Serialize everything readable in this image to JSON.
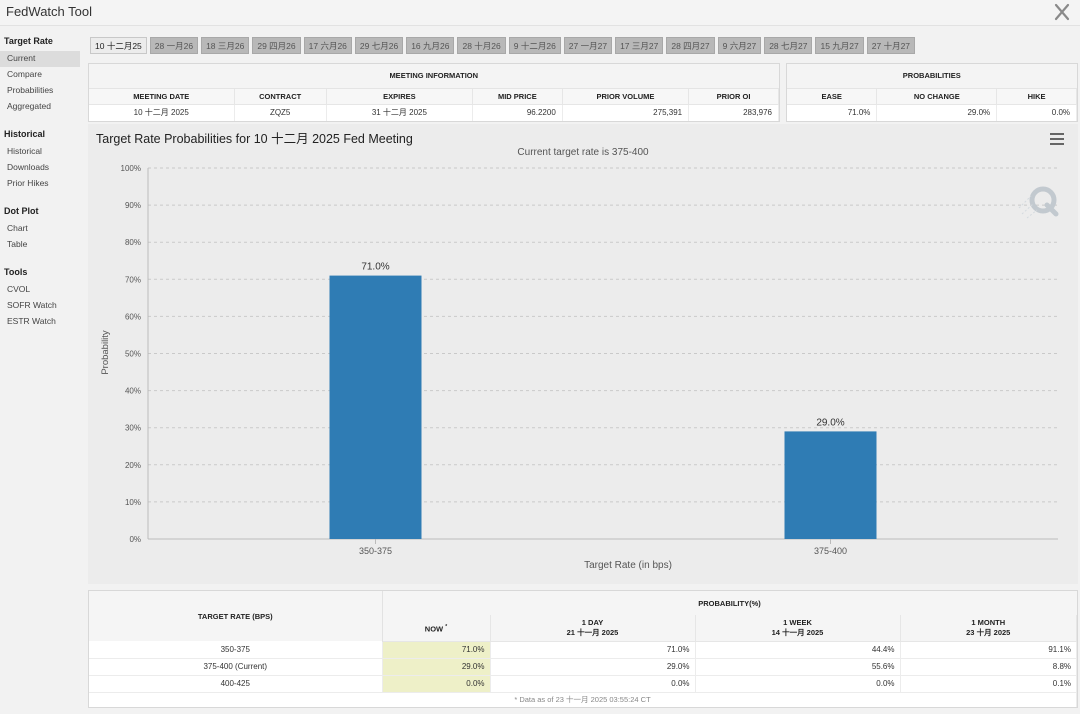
{
  "app": {
    "title": "FedWatch Tool"
  },
  "sidebar": {
    "sections": [
      {
        "heading": "Target Rate",
        "items": [
          "Current",
          "Compare",
          "Probabilities",
          "Aggregated"
        ]
      },
      {
        "heading": "Historical",
        "items": [
          "Historical",
          "Downloads",
          "Prior Hikes"
        ]
      },
      {
        "heading": "Dot Plot",
        "items": [
          "Chart",
          "Table"
        ]
      },
      {
        "heading": "Tools",
        "items": [
          "CVOL",
          "SOFR Watch",
          "ESTR Watch"
        ]
      }
    ],
    "active": "Current"
  },
  "tabs": [
    "10 十二月25",
    "28 一月26",
    "18 三月26",
    "29 四月26",
    "17 六月26",
    "29 七月26",
    "16 九月26",
    "28 十月26",
    "9 十二月26",
    "27 一月27",
    "17 三月27",
    "28 四月27",
    "9 六月27",
    "28 七月27",
    "15 九月27",
    "27 十月27"
  ],
  "meeting_info": {
    "title": "MEETING INFORMATION",
    "headers": [
      "MEETING DATE",
      "CONTRACT",
      "EXPIRES",
      "MID PRICE",
      "PRIOR VOLUME",
      "PRIOR OI"
    ],
    "row": [
      "10 十二月 2025",
      "ZQZ5",
      "31 十二月 2025",
      "96.2200",
      "275,391",
      "283,976"
    ]
  },
  "probabilities": {
    "title": "PROBABILITIES",
    "headers": [
      "EASE",
      "NO CHANGE",
      "HIKE"
    ],
    "row": [
      "71.0%",
      "29.0%",
      "0.0%"
    ]
  },
  "chart": {
    "title": "Target Rate Probabilities for 10 十二月 2025 Fed Meeting",
    "subtitle": "Current target rate is 375-400"
  },
  "chart_data": {
    "type": "bar",
    "title": "Target Rate Probabilities for 10 十二月 2025 Fed Meeting",
    "subtitle": "Current target rate is 375-400",
    "categories": [
      "350-375",
      "375-400"
    ],
    "values": [
      71.0,
      29.0
    ],
    "data_labels": [
      "71.0%",
      "29.0%"
    ],
    "xlabel": "Target Rate (in bps)",
    "ylabel": "Probability",
    "ylim": [
      0,
      100
    ],
    "yticks": [
      "0%",
      "10%",
      "20%",
      "30%",
      "40%",
      "50%",
      "60%",
      "70%",
      "80%",
      "90%",
      "100%"
    ],
    "grid": true,
    "bar_color": "#2f7cb4"
  },
  "bottom_table": {
    "rate_header": "TARGET RATE (BPS)",
    "prob_header": "PROBABILITY(%)",
    "col_now": "NOW",
    "now_mark": "*",
    "cols": [
      {
        "label": "1 DAY",
        "date": "21 十一月 2025"
      },
      {
        "label": "1 WEEK",
        "date": "14 十一月 2025"
      },
      {
        "label": "1 MONTH",
        "date": "23 十月 2025"
      }
    ],
    "rows": [
      {
        "rate": "350-375",
        "now": "71.0%",
        "day": "71.0%",
        "week": "44.4%",
        "month": "91.1%"
      },
      {
        "rate": "375-400 (Current)",
        "now": "29.0%",
        "day": "29.0%",
        "week": "55.6%",
        "month": "8.8%"
      },
      {
        "rate": "400-425",
        "now": "0.0%",
        "day": "0.0%",
        "week": "0.0%",
        "month": "0.1%"
      }
    ],
    "footnote": "* Data as of 23 十一月 2025 03:55:24 CT"
  },
  "colors": {
    "accent": "#2f7cb4",
    "now_highlight": "#eef0c8"
  },
  "icons": {
    "close": "close-icon",
    "menu": "hamburger-menu-icon",
    "watermark": "watermark-q-logo"
  }
}
